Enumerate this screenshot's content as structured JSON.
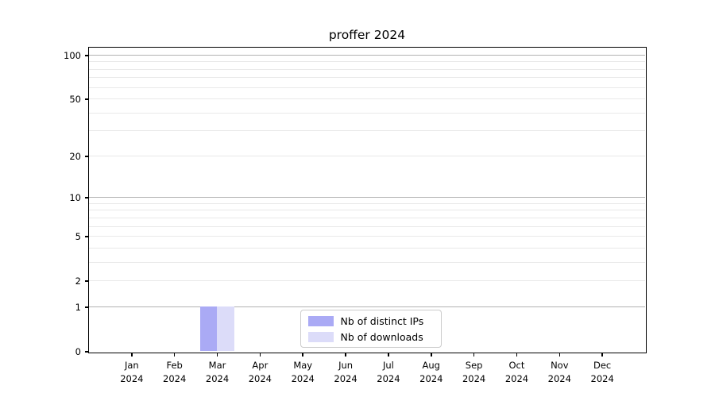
{
  "chart_data": {
    "type": "bar",
    "title": "proffer 2024",
    "x_tick_months": [
      "Jan",
      "Feb",
      "Mar",
      "Apr",
      "May",
      "Jun",
      "Jul",
      "Aug",
      "Sep",
      "Oct",
      "Nov",
      "Dec"
    ],
    "x_tick_year": "2024",
    "series": [
      {
        "name": "Nb of distinct IPs",
        "color": "#aaaaf5",
        "values": [
          0,
          0,
          1,
          0,
          0,
          0,
          0,
          0,
          0,
          0,
          0,
          0
        ]
      },
      {
        "name": "Nb of downloads",
        "color": "#dcdcf9",
        "values": [
          0,
          0,
          1,
          0,
          0,
          0,
          0,
          0,
          0,
          0,
          0,
          0
        ]
      }
    ],
    "y_scale": "log1p",
    "ylim": [
      0,
      113
    ],
    "y_tick_values": [
      0,
      1,
      2,
      5,
      10,
      20,
      50,
      100
    ],
    "y_grid_major": [
      1,
      10,
      100
    ],
    "y_grid_minor": [
      2,
      3,
      4,
      5,
      6,
      7,
      8,
      9,
      20,
      30,
      40,
      50,
      60,
      70,
      80,
      90
    ],
    "legend_position": "lower-center",
    "grid": "on",
    "colors": {
      "grid_major": "#b3b3b3",
      "grid_minor": "#e9e9e9",
      "spine": "#000000",
      "text": "#000000"
    }
  }
}
